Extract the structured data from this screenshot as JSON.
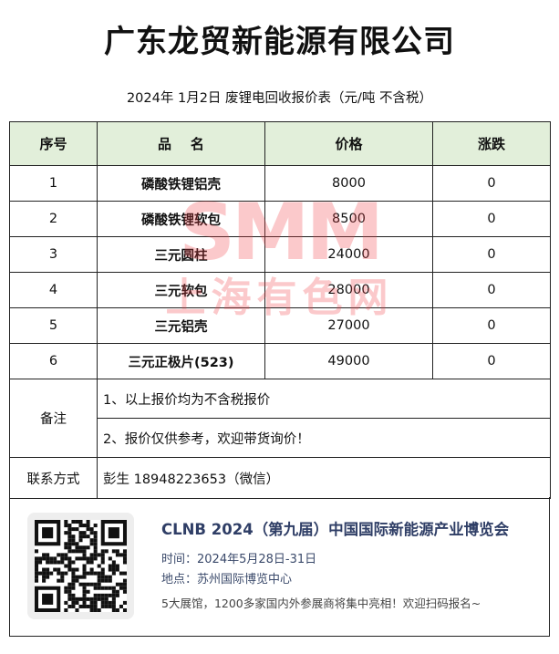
{
  "title": "广东龙贸新能源有限公司",
  "subtitle": "2024年 1月2日 废锂电回收报价表（元/吨  不含税）",
  "table": {
    "headers": [
      "序号",
      "品    名",
      "价格",
      "涨跌"
    ],
    "rows": [
      {
        "no": "1",
        "name": "磷酸铁锂铝壳",
        "price": "8000",
        "change": "0"
      },
      {
        "no": "2",
        "name": "磷酸铁锂软包",
        "price": "8500",
        "change": "0"
      },
      {
        "no": "3",
        "name": "三元圆柱",
        "price": "24000",
        "change": "0"
      },
      {
        "no": "4",
        "name": "三元软包",
        "price": "28000",
        "change": "0"
      },
      {
        "no": "5",
        "name": "三元铝壳",
        "price": "27000",
        "change": "0"
      },
      {
        "no": "6",
        "name": "三元正极片(523)",
        "price": "49000",
        "change": "0"
      }
    ],
    "remarks_label": "备注",
    "remarks": [
      "1、以上报价均为不含税报价",
      "2、报价仅供参考，欢迎带货询价！"
    ],
    "contact_label": "联系方式",
    "contact": "彭生  18948223653（微信）"
  },
  "watermark": {
    "line1": "SMM",
    "line2": "上海有色网"
  },
  "footer": {
    "headline": "CLNB 2024（第九届）中国国际新能源产业博览会",
    "time": "时间：2024年5月28日-31日",
    "place": "地点：苏州国际博览中心",
    "note": "5大展馆，1200多家国内外参展商将集中亮相！欢迎扫码报名~"
  }
}
